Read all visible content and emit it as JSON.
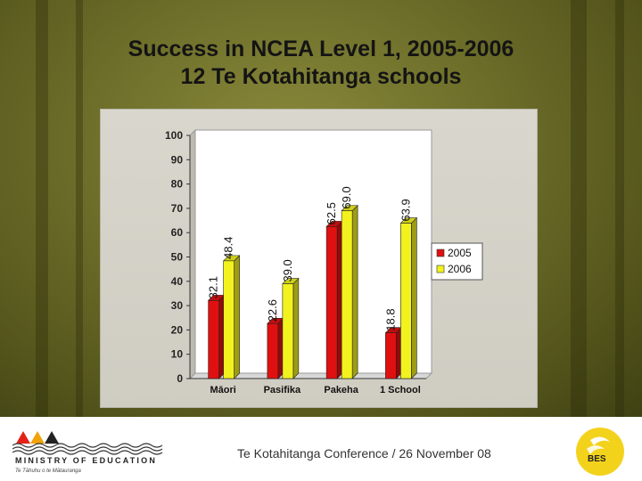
{
  "slide": {
    "title_line1": "Success in NCEA Level 1, 2005-2006",
    "title_line2": "12 Te Kotahitanga schools",
    "footer_text": "Te Kotahitanga Conference / 26 November 08",
    "org_name": "MINISTRY OF EDUCATION",
    "org_subtitle": "Te Tāhuhu o te Mātauranga",
    "badge_text": "BES"
  },
  "colors": {
    "series_2005": "#e01010",
    "series_2006": "#f2f21e",
    "title": "#141414"
  },
  "chart_data": {
    "type": "bar",
    "categories": [
      "Māori",
      "Pasifika",
      "Pakeha",
      "1 School"
    ],
    "series": [
      {
        "name": "2005",
        "values": [
          32.1,
          22.6,
          62.5,
          18.8
        ]
      },
      {
        "name": "2006",
        "values": [
          48.4,
          39.0,
          69.0,
          63.9
        ]
      }
    ],
    "value_labels": [
      [
        "32.1",
        "22.6",
        "62.5",
        "18.8"
      ],
      [
        "48.4",
        "39.0",
        "69.0",
        "63.9"
      ]
    ],
    "ylim": [
      0,
      100
    ],
    "yticks": [
      "0",
      "10",
      "20",
      "30",
      "40",
      "50",
      "60",
      "70",
      "80",
      "90",
      "100"
    ],
    "legend": "right",
    "grid": false
  }
}
